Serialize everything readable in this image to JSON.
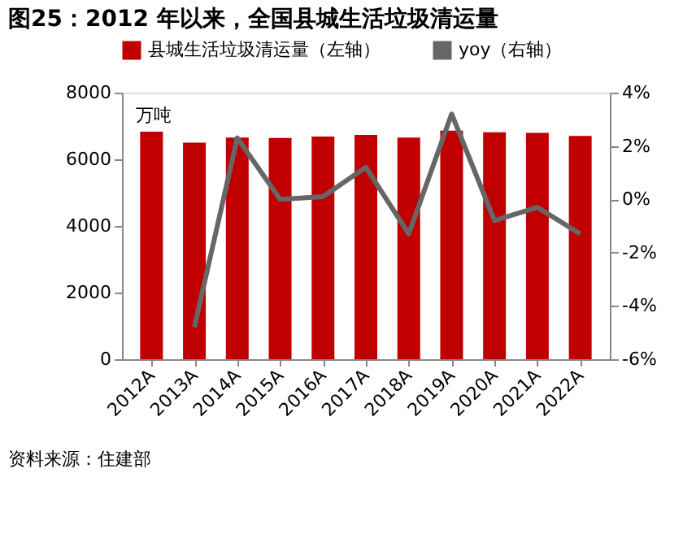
{
  "chart_data": {
    "type": "bar",
    "title": "图25：2012 年以来，全国县城生活垃圾清运量",
    "ylabel": "万吨",
    "categories": [
      "2012A",
      "2013A",
      "2014A",
      "2015A",
      "2016A",
      "2017A",
      "2018A",
      "2019A",
      "2020A",
      "2021A",
      "2022A"
    ],
    "series": [
      {
        "name": "县城生活垃圾清运量（左轴）",
        "color": "#c00000",
        "values": [
          6830,
          6500,
          6650,
          6640,
          6680,
          6730,
          6650,
          6860,
          6810,
          6790,
          6700
        ]
      },
      {
        "name": "yoy（右轴）",
        "type": "line",
        "axis": "y2",
        "color": "#666666",
        "values": [
          null,
          -4.8,
          2.3,
          0.0,
          0.1,
          1.2,
          -1.3,
          3.2,
          -0.8,
          -0.3,
          -1.3
        ]
      }
    ],
    "ylim": [
      0,
      8000
    ],
    "yticks": [
      0,
      2000,
      4000,
      6000,
      8000
    ],
    "y2lim": [
      -6,
      4
    ],
    "y2ticks": [
      {
        "value": -6,
        "label": "-6%"
      },
      {
        "value": -4,
        "label": "-4%"
      },
      {
        "value": -2,
        "label": "-2%"
      },
      {
        "value": 0,
        "label": "0%"
      },
      {
        "value": 2,
        "label": "2%"
      },
      {
        "value": 4,
        "label": "4%"
      }
    ],
    "grid": false,
    "legend": "top",
    "annotations": [
      "资料来源：住建部"
    ]
  }
}
